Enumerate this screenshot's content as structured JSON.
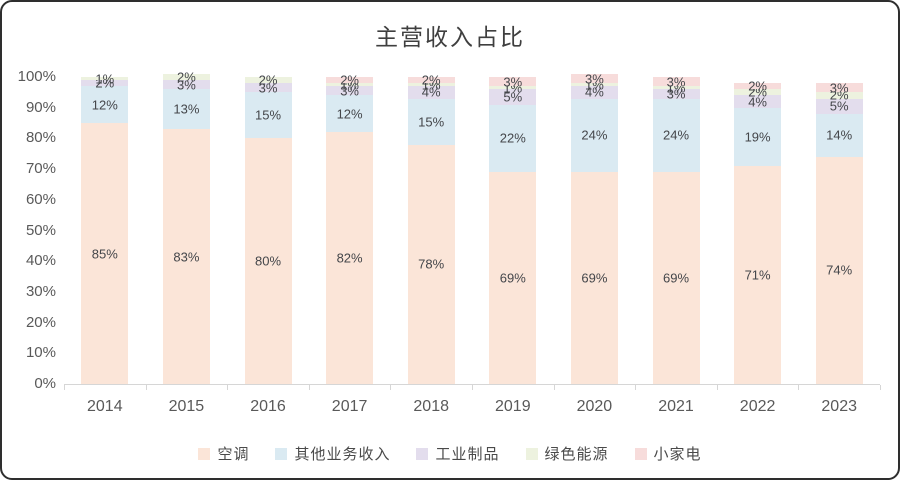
{
  "chart_data": {
    "type": "bar",
    "stacked": true,
    "title": "主营收入占比",
    "categories": [
      "2014",
      "2015",
      "2016",
      "2017",
      "2018",
      "2019",
      "2020",
      "2021",
      "2022",
      "2023"
    ],
    "series": [
      {
        "name": "空调",
        "color": "#FBE5D8",
        "values": [
          85,
          83,
          80,
          82,
          78,
          69,
          69,
          69,
          71,
          74
        ]
      },
      {
        "name": "其他业务收入",
        "color": "#DAEAF2",
        "values": [
          12,
          13,
          15,
          12,
          15,
          22,
          24,
          24,
          19,
          14
        ]
      },
      {
        "name": "工业制品",
        "color": "#E3DDED",
        "values": [
          2,
          3,
          3,
          3,
          4,
          5,
          4,
          3,
          4,
          5
        ]
      },
      {
        "name": "绿色能源",
        "color": "#EDF2DF",
        "values": [
          1,
          2,
          2,
          1,
          1,
          1,
          1,
          1,
          2,
          2
        ]
      },
      {
        "name": "小家电",
        "color": "#F7DCDB",
        "values": [
          0,
          0,
          0,
          2,
          2,
          3,
          3,
          3,
          2,
          3
        ]
      }
    ],
    "value_label_suffix": "%",
    "y_ticks": [
      "0%",
      "10%",
      "20%",
      "30%",
      "40%",
      "50%",
      "60%",
      "70%",
      "80%",
      "90%",
      "100%"
    ],
    "ylim": [
      0,
      100
    ],
    "grid": "off",
    "legend_position": "bottom",
    "label_color": "#44464a",
    "axis_text_color": "#595959"
  }
}
